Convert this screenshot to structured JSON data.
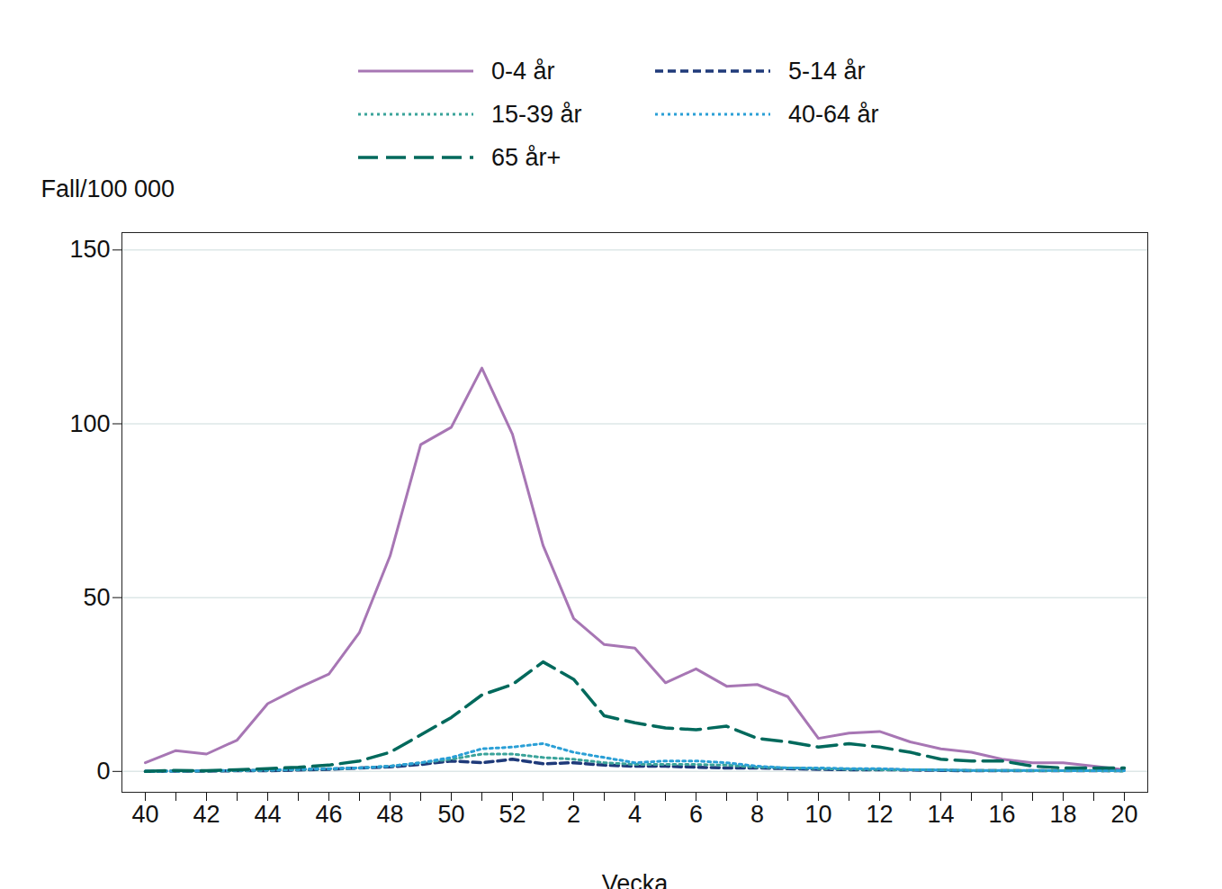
{
  "chart_data": {
    "type": "line",
    "x_label": "Vecka",
    "y_label": "Fall/100 000",
    "categories": [
      "40",
      null,
      "42",
      null,
      "44",
      null,
      "46",
      null,
      "48",
      null,
      "50",
      null,
      "52",
      null,
      "2",
      null,
      "4",
      null,
      "6",
      null,
      "8",
      null,
      "10",
      null,
      "12",
      null,
      "14",
      null,
      "16",
      null,
      "18",
      null,
      "20"
    ],
    "ylim": [
      -6,
      155
    ],
    "yticks": [
      0,
      50,
      100,
      150
    ],
    "grid": true,
    "legend": "top",
    "series": [
      {
        "name": "0-4 år",
        "color": "#a776b4",
        "line_style": "solid",
        "values": [
          2.5,
          6,
          5,
          9,
          19.5,
          24,
          28,
          40,
          62,
          94,
          99,
          116,
          97,
          65,
          44,
          36.5,
          35.5,
          25.5,
          29.5,
          24.5,
          25,
          21.5,
          9.5,
          11,
          11.5,
          8.5,
          6.5,
          5.5,
          3.5,
          2.5,
          2.5,
          1.5,
          0.5
        ]
      },
      {
        "name": "5-14 år",
        "color": "#1f3a7a",
        "line_style": "dashed",
        "values": [
          0,
          0.1,
          0.1,
          0.2,
          0.2,
          0.4,
          0.6,
          1,
          1.3,
          2,
          3,
          2.5,
          3.5,
          2.2,
          2.5,
          1.8,
          1.5,
          1.5,
          1.2,
          1,
          1,
          0.8,
          0.6,
          0.5,
          0.5,
          0.4,
          0.3,
          0.2,
          0.2,
          0.2,
          0.2,
          0.2,
          0.2
        ]
      },
      {
        "name": "15-39 år",
        "color": "#3aa39a",
        "line_style": "dotted",
        "values": [
          0,
          0.1,
          0.1,
          0.2,
          0.3,
          0.5,
          0.7,
          1,
          1.5,
          2.5,
          3.5,
          5,
          5,
          4,
          3.5,
          2.5,
          2,
          2,
          2,
          1.8,
          1.2,
          1,
          0.8,
          0.6,
          0.5,
          0.5,
          0.4,
          0.3,
          0.3,
          0.2,
          0.2,
          0.2,
          0.1
        ]
      },
      {
        "name": "40-64 år",
        "color": "#2a9fd6",
        "line_style": "dotted",
        "values": [
          0,
          0.1,
          0.2,
          0.3,
          0.4,
          0.6,
          0.8,
          1,
          1.5,
          2.5,
          4,
          6.5,
          7,
          8,
          5.5,
          4,
          2.5,
          3,
          3,
          2.5,
          1.5,
          1,
          1,
          0.8,
          0.8,
          0.5,
          0.4,
          0.3,
          0.3,
          0.3,
          0.2,
          0.2,
          0.2
        ]
      },
      {
        "name": "65 år+",
        "color": "#00695c",
        "line_style": "longdash",
        "values": [
          0,
          0.3,
          0.2,
          0.5,
          0.8,
          1.2,
          1.8,
          3,
          5.5,
          10.5,
          15.5,
          22,
          25,
          31.5,
          26.5,
          16,
          14,
          12.5,
          12,
          13,
          9.5,
          8.5,
          7,
          8,
          7,
          5.5,
          3.5,
          3,
          3,
          1.5,
          1,
          1,
          1
        ]
      }
    ]
  }
}
